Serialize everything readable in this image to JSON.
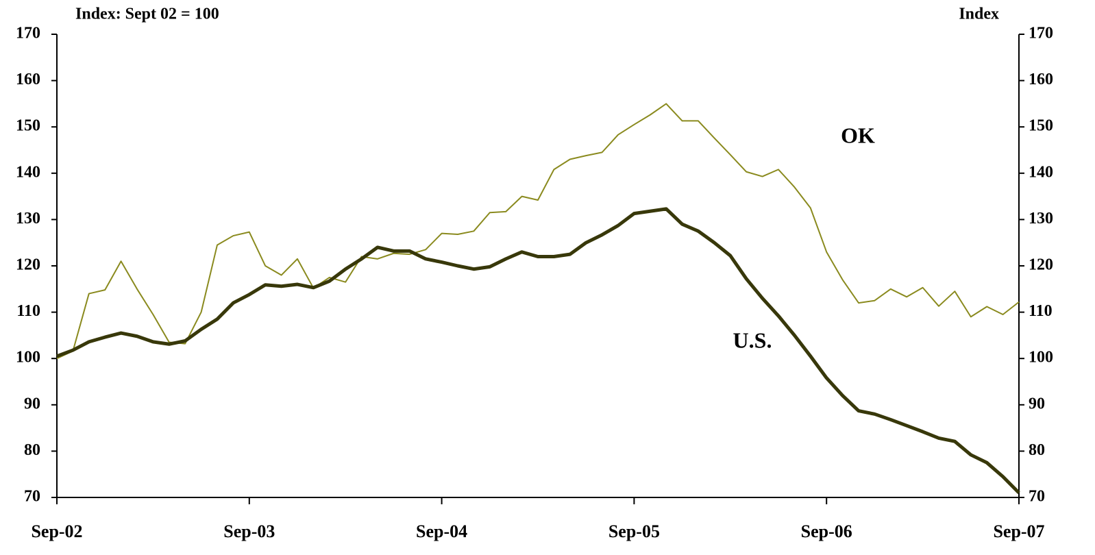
{
  "chart_data": {
    "type": "line",
    "y_label": "Index: Sept 02 = 100",
    "y2_label": "Index",
    "categories": [
      "Sep-02",
      null,
      null,
      null,
      null,
      null,
      null,
      null,
      null,
      null,
      null,
      null,
      "Sep-03",
      null,
      null,
      null,
      null,
      null,
      null,
      null,
      null,
      null,
      null,
      null,
      "Sep-04",
      null,
      null,
      null,
      null,
      null,
      null,
      null,
      null,
      null,
      null,
      null,
      "Sep-05",
      null,
      null,
      null,
      null,
      null,
      null,
      null,
      null,
      null,
      null,
      null,
      "Sep-06",
      null,
      null,
      null,
      null,
      null,
      null,
      null,
      null,
      null,
      null,
      null,
      "Sep-07"
    ],
    "series": [
      {
        "name": "OK",
        "color": "#8a8a1e",
        "values": [
          100,
          101.6,
          114,
          114.8,
          121,
          115,
          109.5,
          103.5,
          103.2,
          110,
          124.5,
          126.5,
          127.3,
          120,
          118,
          121.5,
          115.2,
          117.5,
          116.5,
          122,
          121.5,
          122.7,
          122.5,
          123.5,
          127,
          126.8,
          127.5,
          131.5,
          131.7,
          135,
          134.2,
          140.8,
          143,
          143.8,
          144.5,
          148.3,
          150.5,
          152.6,
          155,
          151.3,
          151.3,
          147.6,
          144,
          140.3,
          139.3,
          140.8,
          137,
          132.5,
          123,
          117,
          112,
          112.5,
          115,
          113.3,
          115.3,
          111.3,
          114.5,
          109,
          111.2,
          109.5,
          112.2
        ]
      },
      {
        "name": "U.S.",
        "color": "#38380a",
        "values": [
          100.5,
          101.8,
          103.6,
          104.6,
          105.5,
          104.8,
          103.6,
          103.1,
          103.8,
          106.3,
          108.5,
          112,
          113.8,
          115.9,
          115.6,
          116,
          115.3,
          116.7,
          119.3,
          121.5,
          124,
          123.2,
          123.2,
          121.5,
          120.8,
          120,
          119.3,
          119.8,
          121.5,
          123,
          122,
          122,
          122.5,
          125,
          126.7,
          128.7,
          131.3,
          131.8,
          132.3,
          129,
          127.5,
          125,
          122.2,
          117.2,
          113,
          109.2,
          105,
          100.5,
          95.8,
          92,
          88.7,
          88,
          86.8,
          85.5,
          84.2,
          82.8,
          82.1,
          79.2,
          77.5,
          74.5,
          71
        ]
      }
    ],
    "ylim": [
      70,
      170
    ],
    "yticks": [
      70,
      80,
      90,
      100,
      110,
      120,
      130,
      140,
      150,
      160,
      170
    ],
    "y2lim": [
      70,
      170
    ],
    "y2ticks": [
      70,
      80,
      90,
      100,
      110,
      120,
      130,
      140,
      150,
      160,
      170
    ],
    "grid": false
  }
}
